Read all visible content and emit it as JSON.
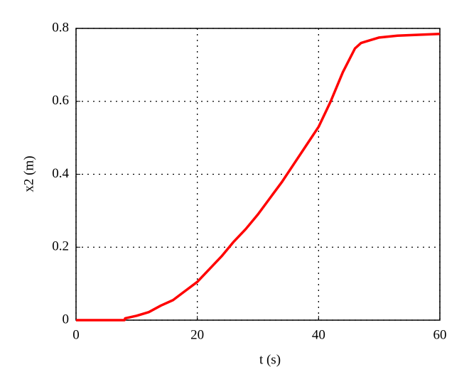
{
  "chart_data": {
    "type": "line",
    "xlabel": "t (s)",
    "ylabel": "x2 (m)",
    "x": [
      0,
      8,
      8.1,
      10,
      12,
      14,
      16,
      18,
      20,
      22,
      24,
      26,
      28,
      30,
      32,
      34,
      36,
      38,
      40,
      42,
      44,
      46,
      47,
      48,
      50,
      53,
      60
    ],
    "series": [
      {
        "color": "#ff0000",
        "values": [
          0,
          0,
          0.005,
          0.012,
          0.022,
          0.04,
          0.055,
          0.08,
          0.105,
          0.14,
          0.175,
          0.215,
          0.25,
          0.29,
          0.335,
          0.38,
          0.43,
          0.48,
          0.53,
          0.6,
          0.68,
          0.745,
          0.76,
          0.765,
          0.775,
          0.78,
          0.785
        ]
      }
    ],
    "xlim": [
      0,
      60
    ],
    "xticks": [
      0,
      20,
      40,
      60
    ],
    "ylim": [
      0,
      0.8
    ],
    "yticks": [
      0,
      0.2,
      0.4,
      0.6,
      0.8
    ],
    "grid": true
  }
}
